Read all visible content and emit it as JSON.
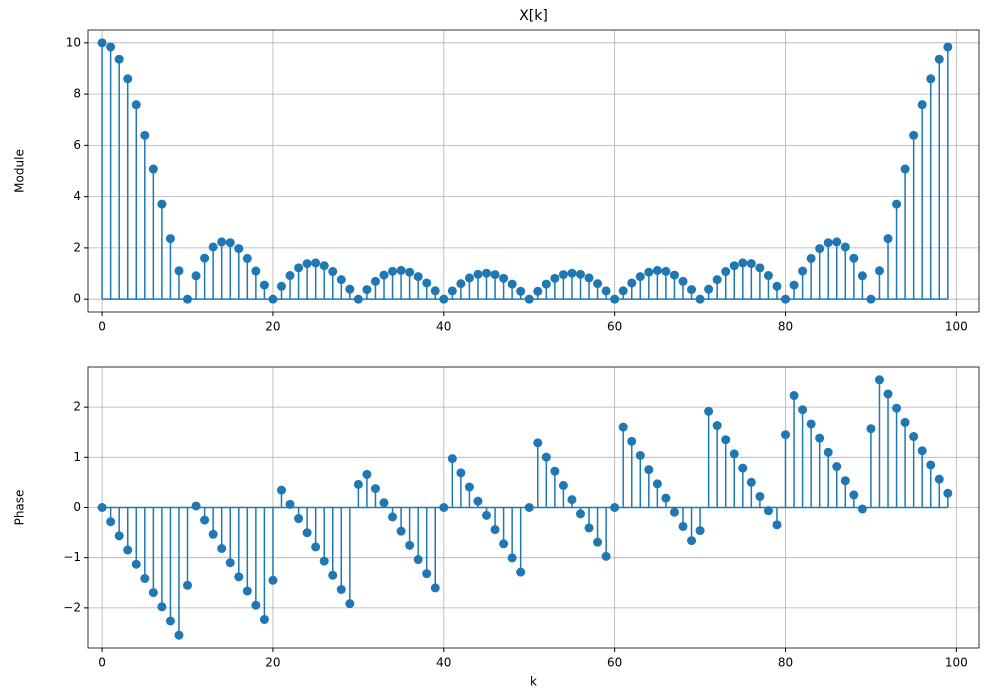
{
  "chart_data": [
    {
      "type": "stem",
      "title": "X[k]",
      "y_label": "Module",
      "color": "#1f77b4",
      "grid": true,
      "x": [
        0,
        1,
        2,
        3,
        4,
        5,
        6,
        7,
        8,
        9,
        10,
        11,
        12,
        13,
        14,
        15,
        16,
        17,
        18,
        19,
        20,
        21,
        22,
        23,
        24,
        25,
        26,
        27,
        28,
        29,
        30,
        31,
        32,
        33,
        34,
        35,
        36,
        37,
        38,
        39,
        40,
        41,
        42,
        43,
        44,
        45,
        46,
        47,
        48,
        49,
        50,
        51,
        52,
        53,
        54,
        55,
        56,
        57,
        58,
        59,
        60,
        61,
        62,
        63,
        64,
        65,
        66,
        67,
        68,
        69,
        70,
        71,
        72,
        73,
        74,
        75,
        76,
        77,
        78,
        79,
        80,
        81,
        82,
        83,
        84,
        85,
        86,
        87,
        88,
        89,
        90,
        91,
        92,
        93,
        94,
        95,
        96,
        97,
        98,
        99
      ],
      "values": [
        10,
        9.838,
        9.361,
        8.597,
        7.588,
        6.392,
        5.076,
        3.709,
        2.364,
        1.108,
        0,
        0.912,
        1.597,
        2.037,
        2.234,
        2.203,
        1.974,
        1.589,
        1.097,
        0.55,
        0,
        0.504,
        0.922,
        1.223,
        1.389,
        1.414,
        1.305,
        1.079,
        0.763,
        0.391,
        0,
        0.374,
        0.696,
        0.94,
        1.085,
        1.122,
        1.051,
        0.882,
        0.632,
        0.328,
        0,
        0.322,
        0.607,
        0.829,
        0.968,
        1.012,
        0.959,
        0.813,
        0.589,
        0.309,
        0,
        0.309,
        0.589,
        0.813,
        0.959,
        1.012,
        0.968,
        0.829,
        0.607,
        0.322,
        0,
        0.328,
        0.632,
        0.882,
        1.051,
        1.122,
        1.085,
        0.94,
        0.696,
        0.374,
        0,
        0.391,
        0.763,
        1.079,
        1.305,
        1.414,
        1.389,
        1.223,
        0.922,
        0.504,
        0,
        0.55,
        1.097,
        1.589,
        1.974,
        2.203,
        2.234,
        2.037,
        1.597,
        0.912,
        0,
        1.108,
        2.364,
        3.709,
        5.076,
        6.392,
        7.588,
        8.597,
        9.361,
        9.838
      ],
      "xlim": [
        -1.65,
        102.65
      ],
      "xticks": [
        0,
        20,
        40,
        60,
        80,
        100
      ],
      "ylim": [
        -0.5,
        10.5
      ],
      "yticks": [
        0,
        2,
        4,
        6,
        8,
        10
      ]
    },
    {
      "type": "stem",
      "y_label": "Phase",
      "x_label": "k",
      "color": "#1f77b4",
      "grid": true,
      "x": [
        0,
        1,
        2,
        3,
        4,
        5,
        6,
        7,
        8,
        9,
        10,
        11,
        12,
        13,
        14,
        15,
        16,
        17,
        18,
        19,
        20,
        21,
        22,
        23,
        24,
        25,
        26,
        27,
        28,
        29,
        30,
        31,
        32,
        33,
        34,
        35,
        36,
        37,
        38,
        39,
        40,
        41,
        42,
        43,
        44,
        45,
        46,
        47,
        48,
        49,
        50,
        51,
        52,
        53,
        54,
        55,
        56,
        57,
        58,
        59,
        60,
        61,
        62,
        63,
        64,
        65,
        66,
        67,
        68,
        69,
        70,
        71,
        72,
        73,
        74,
        75,
        76,
        77,
        78,
        79,
        80,
        81,
        82,
        83,
        84,
        85,
        86,
        87,
        88,
        89,
        90,
        91,
        92,
        93,
        94,
        95,
        96,
        97,
        98,
        99
      ],
      "values": [
        0,
        -0.283,
        -0.565,
        -0.848,
        -1.131,
        -1.414,
        -1.696,
        -1.979,
        -2.262,
        -2.545,
        -1.55,
        0.031,
        -0.251,
        -0.534,
        -0.817,
        -1.1,
        -1.382,
        -1.665,
        -1.948,
        -2.231,
        -1.45,
        0.346,
        0.063,
        -0.22,
        -0.503,
        -0.785,
        -1.068,
        -1.351,
        -1.634,
        -1.916,
        0.46,
        0.66,
        0.377,
        0.094,
        -0.188,
        -0.471,
        -0.754,
        -1.037,
        -1.319,
        -1.602,
        0,
        0.974,
        0.691,
        0.409,
        0.126,
        -0.157,
        -0.44,
        -0.723,
        -1.005,
        -1.288,
        0,
        1.288,
        1.005,
        0.723,
        0.44,
        0.157,
        -0.126,
        -0.408,
        -0.691,
        -0.974,
        0,
        1.602,
        1.319,
        1.037,
        0.754,
        0.471,
        0.188,
        -0.094,
        -0.377,
        -0.66,
        -0.46,
        1.916,
        1.634,
        1.351,
        1.068,
        0.785,
        0.503,
        0.22,
        -0.063,
        -0.346,
        1.45,
        2.231,
        1.948,
        1.665,
        1.382,
        1.1,
        0.817,
        0.534,
        0.251,
        -0.031,
        1.57,
        2.545,
        2.262,
        1.979,
        1.696,
        1.414,
        1.131,
        0.848,
        0.565,
        0.283
      ],
      "xlim": [
        -1.65,
        102.65
      ],
      "xticks": [
        0,
        20,
        40,
        60,
        80,
        100
      ],
      "ylim": [
        -2.8,
        2.8
      ],
      "yticks": [
        {
          "value": -2,
          "label": "−2"
        },
        {
          "value": -1,
          "label": "−1"
        },
        0,
        1,
        2
      ]
    }
  ]
}
